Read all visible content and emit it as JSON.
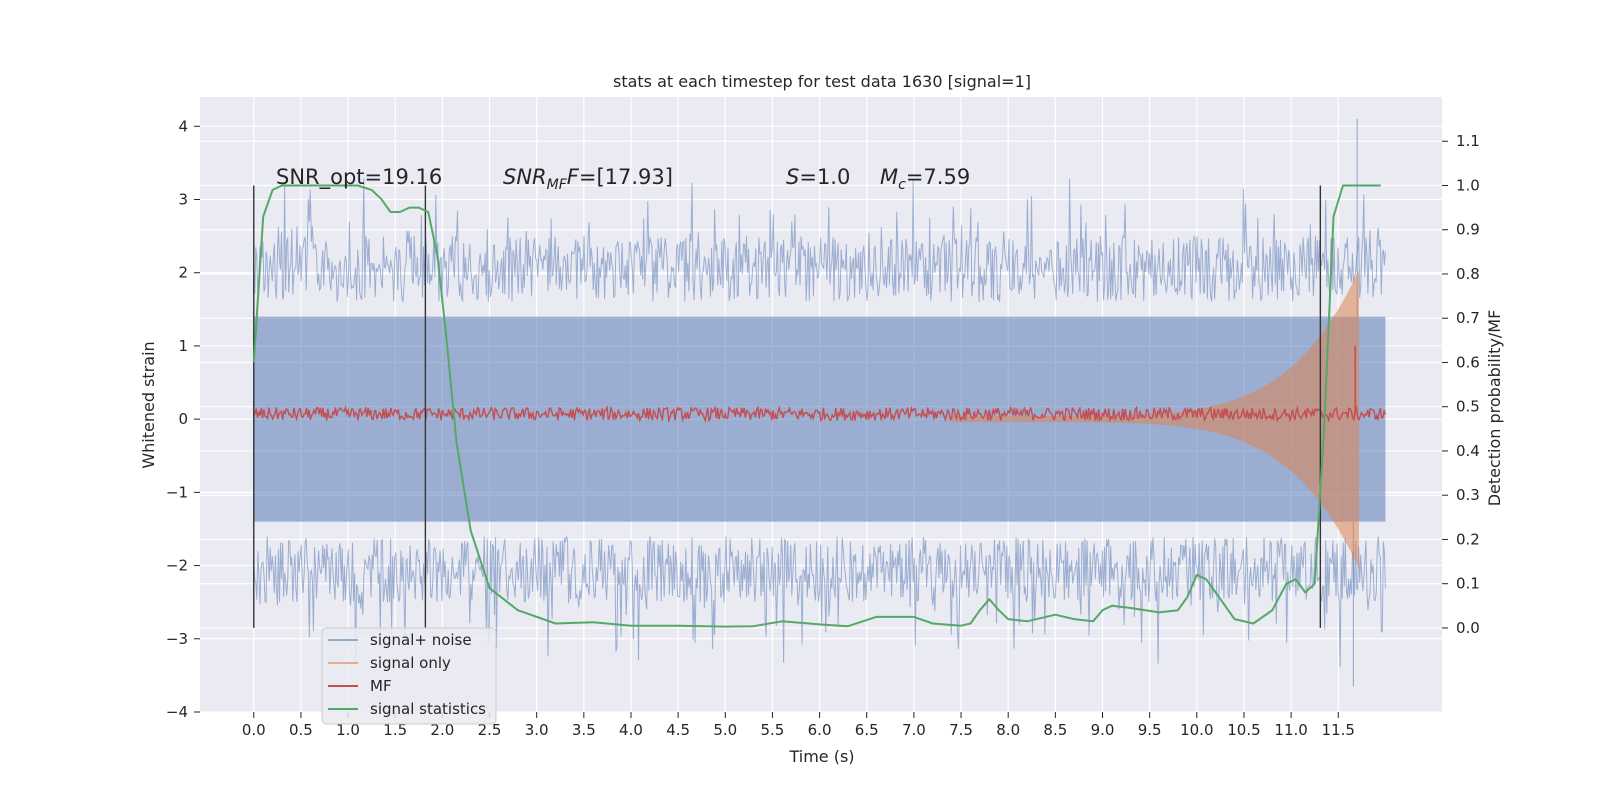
{
  "chart_data": {
    "type": "line",
    "title": "stats at each timestep for test data 1630 [signal=1]",
    "xlabel": "Time (s)",
    "ylabel": "Whitened strain",
    "y2label": "Detection probability/MF",
    "xlim": [
      -0.57,
      12.6
    ],
    "ylim": [
      -4.0,
      4.4
    ],
    "y2lim": [
      -0.19,
      1.2
    ],
    "x_ticks": [
      "0.0",
      "0.5",
      "1.0",
      "1.5",
      "2.0",
      "2.5",
      "3.0",
      "3.5",
      "4.0",
      "4.5",
      "5.0",
      "5.5",
      "6.0",
      "6.5",
      "7.0",
      "7.5",
      "8.0",
      "8.5",
      "9.0",
      "9.5",
      "10.0",
      "10.5",
      "11.0",
      "11.5"
    ],
    "y_ticks": [
      "4",
      "3",
      "2",
      "1",
      "0",
      "−1",
      "−2",
      "−3",
      "−4"
    ],
    "y2_ticks": [
      "1.1",
      "1.0",
      "0.9",
      "0.8",
      "0.7",
      "0.6",
      "0.5",
      "0.4",
      "0.3",
      "0.2",
      "0.1",
      "0.0"
    ],
    "grid": true,
    "legend_position": "lower-left",
    "colors": {
      "signal_noise": "#4c72b0",
      "signal_only": "#dd8452",
      "mf": "#c44e52",
      "signal_statistics": "#55a868",
      "vlines": "#333333",
      "plot_bg": "#eaeaf2"
    },
    "annotations": {
      "snr_opt": "SNR_opt=19.16",
      "snr_mf_base": "SNR",
      "snr_mf_sub": "MF",
      "snr_mf_value": "=[17.93]",
      "s_label": "S",
      "s_value": "=1.0",
      "mc_label": "M",
      "mc_sub": "c",
      "mc_value": "=7.59"
    },
    "vertical_lines_x": [
      0.0,
      1.82,
      11.31
    ],
    "series": [
      {
        "name": "signal+ noise",
        "style": "dense noise band",
        "envelope_core": [
          -1.4,
          1.4
        ],
        "peaks_max": 4.1,
        "peaks_min": -3.65,
        "x_range": [
          0.0,
          12.0
        ]
      },
      {
        "name": "signal only",
        "style": "chirp envelope",
        "x_range": [
          7.4,
          11.72
        ],
        "peak_amplitude": 2.0
      },
      {
        "name": "MF",
        "style": "noisy line near zero",
        "mean": 0.07,
        "spike": {
          "x": 11.68,
          "y": 1.0
        }
      },
      {
        "name": "signal statistics",
        "axis": "right",
        "x": [
          0.0,
          0.1,
          0.2,
          0.3,
          0.5,
          0.8,
          1.1,
          1.25,
          1.35,
          1.45,
          1.55,
          1.65,
          1.75,
          1.85,
          1.95,
          2.05,
          2.15,
          2.3,
          2.5,
          2.8,
          3.2,
          3.6,
          4.0,
          4.5,
          5.0,
          5.3,
          5.6,
          6.0,
          6.3,
          6.6,
          7.0,
          7.2,
          7.5,
          7.6,
          7.7,
          7.8,
          7.9,
          8.0,
          8.2,
          8.5,
          8.7,
          8.9,
          9.0,
          9.1,
          9.3,
          9.6,
          9.8,
          9.9,
          10.0,
          10.1,
          10.2,
          10.4,
          10.6,
          10.8,
          10.95,
          11.05,
          11.15,
          11.25,
          11.35,
          11.45,
          11.55,
          11.75,
          11.95
        ],
        "values": [
          0.6,
          0.93,
          0.99,
          1.0,
          1.0,
          1.0,
          1.0,
          0.99,
          0.97,
          0.94,
          0.94,
          0.95,
          0.95,
          0.94,
          0.84,
          0.64,
          0.42,
          0.22,
          0.09,
          0.04,
          0.01,
          0.013,
          0.005,
          0.005,
          0.003,
          0.004,
          0.015,
          0.008,
          0.004,
          0.025,
          0.025,
          0.01,
          0.005,
          0.01,
          0.04,
          0.065,
          0.04,
          0.02,
          0.015,
          0.03,
          0.02,
          0.015,
          0.04,
          0.05,
          0.045,
          0.035,
          0.04,
          0.07,
          0.12,
          0.11,
          0.08,
          0.02,
          0.01,
          0.04,
          0.1,
          0.11,
          0.08,
          0.1,
          0.45,
          0.93,
          1.0,
          1.0,
          1.0
        ]
      }
    ]
  }
}
